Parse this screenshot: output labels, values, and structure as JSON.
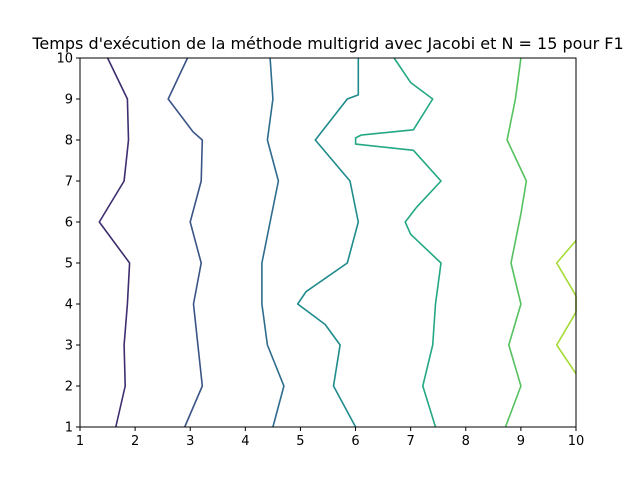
{
  "chart_data": {
    "type": "contour",
    "title": "Temps d'exécution de la méthode multigrid avec Jacobi et N = 15 pour F1",
    "xlabel": "",
    "ylabel": "",
    "xlim": [
      1,
      10
    ],
    "ylim": [
      1,
      10
    ],
    "xticks": [
      "1",
      "2",
      "3",
      "4",
      "5",
      "6",
      "7",
      "8",
      "9",
      "10"
    ],
    "yticks": [
      "1",
      "2",
      "3",
      "4",
      "5",
      "6",
      "7",
      "8",
      "9",
      "10"
    ],
    "grid": false,
    "legend": "none",
    "series": [
      {
        "color": "#3e2d6f",
        "points": [
          [
            1.65,
            1
          ],
          [
            1.82,
            2
          ],
          [
            1.8,
            3
          ],
          [
            1.86,
            4
          ],
          [
            1.9,
            5
          ],
          [
            1.35,
            6
          ],
          [
            1.8,
            7
          ],
          [
            1.88,
            8
          ],
          [
            1.86,
            9
          ],
          [
            1.5,
            10
          ]
        ]
      },
      {
        "color": "#3b5486",
        "points": [
          [
            2.9,
            1
          ],
          [
            3.22,
            2
          ],
          [
            3.14,
            3
          ],
          [
            3.06,
            4
          ],
          [
            3.2,
            5
          ],
          [
            3.0,
            6
          ],
          [
            3.2,
            7
          ],
          [
            3.22,
            8
          ],
          [
            3.05,
            8.2
          ],
          [
            2.6,
            9
          ],
          [
            2.95,
            10
          ]
        ]
      },
      {
        "color": "#2e6c8e",
        "points": [
          [
            4.5,
            1
          ],
          [
            4.7,
            2
          ],
          [
            4.4,
            3
          ],
          [
            4.3,
            4
          ],
          [
            4.3,
            5
          ],
          [
            4.45,
            6
          ],
          [
            4.6,
            7
          ],
          [
            4.4,
            8
          ],
          [
            4.5,
            9
          ],
          [
            4.45,
            10
          ]
        ]
      },
      {
        "color": "#1f8b8c",
        "points": [
          [
            6.0,
            1
          ],
          [
            5.6,
            2
          ],
          [
            5.72,
            3
          ],
          [
            5.45,
            3.5
          ],
          [
            4.95,
            4
          ],
          [
            5.1,
            4.3
          ],
          [
            5.85,
            5
          ],
          [
            6.05,
            6
          ],
          [
            5.9,
            7
          ],
          [
            5.27,
            8
          ],
          [
            5.85,
            9
          ],
          [
            6.05,
            9.1
          ],
          [
            6.05,
            10
          ]
        ]
      },
      {
        "color": "#23a883",
        "points": [
          [
            7.45,
            1
          ],
          [
            7.22,
            2
          ],
          [
            7.4,
            3
          ],
          [
            7.45,
            4
          ],
          [
            7.55,
            5
          ],
          [
            7.0,
            5.7
          ],
          [
            6.9,
            6
          ],
          [
            7.1,
            6.35
          ],
          [
            7.55,
            7
          ],
          [
            7.05,
            7.75
          ],
          [
            6.0,
            7.9
          ],
          [
            6.0,
            8.05
          ],
          [
            6.1,
            8.12
          ],
          [
            7.05,
            8.25
          ],
          [
            7.4,
            9
          ],
          [
            7.0,
            9.4
          ],
          [
            6.7,
            10
          ]
        ]
      },
      {
        "color": "#55c15f",
        "points": [
          [
            8.72,
            1
          ],
          [
            9.0,
            2
          ],
          [
            8.78,
            3
          ],
          [
            9.0,
            4
          ],
          [
            8.82,
            5
          ],
          [
            9.0,
            6.2
          ],
          [
            9.1,
            7
          ],
          [
            8.75,
            8
          ],
          [
            8.9,
            9
          ],
          [
            9.0,
            10
          ]
        ]
      },
      {
        "color": "#a5db36",
        "points": [
          [
            10,
            2.3
          ],
          [
            9.65,
            3
          ],
          [
            10,
            3.8
          ],
          [
            10,
            4.2
          ],
          [
            9.65,
            5
          ],
          [
            10,
            5.55
          ]
        ]
      }
    ]
  }
}
